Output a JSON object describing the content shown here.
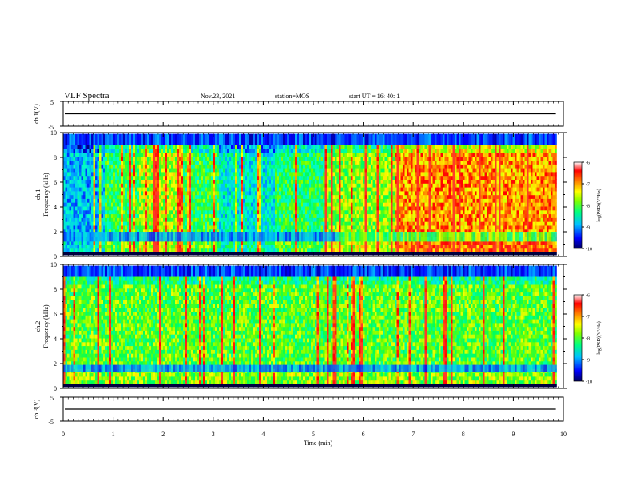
{
  "header": {
    "title": "VLF Spectra",
    "date": "Nov.23, 2021",
    "station": "station=MOS",
    "start": "start UT =  16: 40: 1"
  },
  "chart_data": [
    {
      "type": "line",
      "name": "ch1-waveform",
      "ylabel": "ch.1(V)",
      "ylim": [
        -5,
        5
      ],
      "yticks": [
        "5",
        "-5"
      ],
      "xlim": [
        0,
        10
      ],
      "level": 0
    },
    {
      "type": "heatmap",
      "name": "ch1-spectrogram",
      "ylabel": "ch.1\nFrequency (kHz)",
      "ylim": [
        0,
        10
      ],
      "yticks": [
        "0",
        "2",
        "4",
        "6",
        "8",
        "10"
      ],
      "xlim": [
        0,
        10
      ],
      "data_end_min": 9.85,
      "colorbar": {
        "label": "log(PSD)(V²/Hz)",
        "range": [
          -10,
          -6
        ],
        "ticks": [
          "-6",
          "-7",
          "-8",
          "-9",
          "-10"
        ]
      },
      "segments": [
        {
          "t0": 0.0,
          "t1": 0.8,
          "level": -8.9
        },
        {
          "t0": 0.8,
          "t1": 1.5,
          "level": -8.0
        },
        {
          "t0": 1.5,
          "t1": 2.3,
          "level": -7.5
        },
        {
          "t0": 2.3,
          "t1": 3.1,
          "level": -8.0
        },
        {
          "t0": 3.1,
          "t1": 4.2,
          "level": -8.6
        },
        {
          "t0": 4.2,
          "t1": 5.2,
          "level": -8.1
        },
        {
          "t0": 5.2,
          "t1": 6.6,
          "level": -7.6
        },
        {
          "t0": 6.6,
          "t1": 9.85,
          "level": -6.8
        }
      ]
    },
    {
      "type": "heatmap",
      "name": "ch2-spectrogram",
      "ylabel": "ch.2\nFrequency (kHz)",
      "ylim": [
        0,
        10
      ],
      "yticks": [
        "0",
        "2",
        "4",
        "6",
        "8",
        "10"
      ],
      "xlim": [
        0,
        10
      ],
      "data_end_min": 9.85,
      "colorbar": {
        "label": "log(PSD)(V²/Hz)",
        "range": [
          -10,
          -6
        ],
        "ticks": [
          "-6",
          "-7",
          "-8",
          "-9",
          "-10"
        ]
      },
      "segments": [
        {
          "t0": 0.0,
          "t1": 9.85,
          "level": -7.8
        }
      ]
    },
    {
      "type": "line",
      "name": "ch3-waveform",
      "ylabel": "ch.3(V)",
      "ylim": [
        -5,
        5
      ],
      "yticks": [
        "5",
        "-5"
      ],
      "xlim": [
        0,
        10
      ],
      "level": 0
    }
  ],
  "xaxis": {
    "label": "Time (min)",
    "ticks": [
      "0",
      "1",
      "2",
      "3",
      "4",
      "5",
      "6",
      "7",
      "8",
      "9",
      "10"
    ]
  },
  "colors": {
    "colormap": [
      "#00007f",
      "#0000ff",
      "#00a0ff",
      "#00ffff",
      "#00ff66",
      "#7fff00",
      "#ffff00",
      "#ffa000",
      "#ff0000",
      "#ffffff"
    ]
  }
}
